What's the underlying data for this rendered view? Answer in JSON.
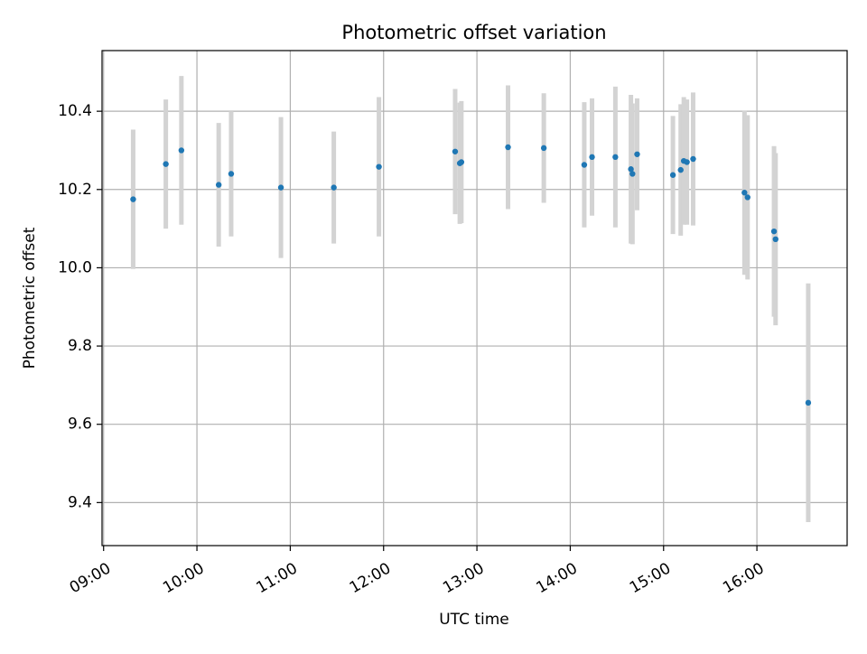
{
  "chart_data": {
    "type": "scatter",
    "title": "Photometric offset variation",
    "xlabel": "UTC time",
    "ylabel": "Photometric offset",
    "xlim": [
      "09:00",
      "16:58"
    ],
    "ylim": [
      9.29,
      10.555
    ],
    "grid": true,
    "x_ticks": [
      "09:00",
      "10:00",
      "11:00",
      "12:00",
      "13:00",
      "14:00",
      "15:00",
      "16:00"
    ],
    "y_ticks": [
      "9.4",
      "9.6",
      "9.8",
      "10.0",
      "10.2",
      "10.4"
    ],
    "colors": {
      "points": "#1f77b4",
      "errorbars": "#d3d3d3",
      "grid": "#b0b0b0"
    },
    "series": [
      {
        "points": [
          {
            "x": "09:19",
            "y": 10.175,
            "yerr": 0.178
          },
          {
            "x": "09:40",
            "y": 10.265,
            "yerr": 0.165
          },
          {
            "x": "09:50",
            "y": 10.3,
            "yerr": 0.19
          },
          {
            "x": "10:14",
            "y": 10.212,
            "yerr": 0.158
          },
          {
            "x": "10:22",
            "y": 10.24,
            "yerr": 0.16
          },
          {
            "x": "10:54",
            "y": 10.205,
            "yerr": 0.18
          },
          {
            "x": "11:28",
            "y": 10.205,
            "yerr": 0.143
          },
          {
            "x": "11:57",
            "y": 10.258,
            "yerr": 0.178
          },
          {
            "x": "12:46",
            "y": 10.297,
            "yerr": 0.16
          },
          {
            "x": "12:49",
            "y": 10.267,
            "yerr": 0.155
          },
          {
            "x": "12:50",
            "y": 10.27,
            "yerr": 0.156
          },
          {
            "x": "13:20",
            "y": 10.308,
            "yerr": 0.158
          },
          {
            "x": "13:43",
            "y": 10.306,
            "yerr": 0.14
          },
          {
            "x": "14:09",
            "y": 10.263,
            "yerr": 0.16
          },
          {
            "x": "14:14",
            "y": 10.283,
            "yerr": 0.15
          },
          {
            "x": "14:29",
            "y": 10.283,
            "yerr": 0.18
          },
          {
            "x": "14:39",
            "y": 10.252,
            "yerr": 0.19
          },
          {
            "x": "14:40",
            "y": 10.24,
            "yerr": 0.18
          },
          {
            "x": "14:43",
            "y": 10.29,
            "yerr": 0.143
          },
          {
            "x": "15:06",
            "y": 10.237,
            "yerr": 0.151
          },
          {
            "x": "15:11",
            "y": 10.25,
            "yerr": 0.168
          },
          {
            "x": "15:13",
            "y": 10.273,
            "yerr": 0.163
          },
          {
            "x": "15:15",
            "y": 10.27,
            "yerr": 0.16
          },
          {
            "x": "15:19",
            "y": 10.278,
            "yerr": 0.17
          },
          {
            "x": "15:52",
            "y": 10.192,
            "yerr": 0.21
          },
          {
            "x": "15:54",
            "y": 10.18,
            "yerr": 0.21
          },
          {
            "x": "16:11",
            "y": 10.093,
            "yerr": 0.218
          },
          {
            "x": "16:12",
            "y": 10.073,
            "yerr": 0.22
          },
          {
            "x": "16:33",
            "y": 9.655,
            "yerr": 0.305
          }
        ]
      }
    ]
  }
}
